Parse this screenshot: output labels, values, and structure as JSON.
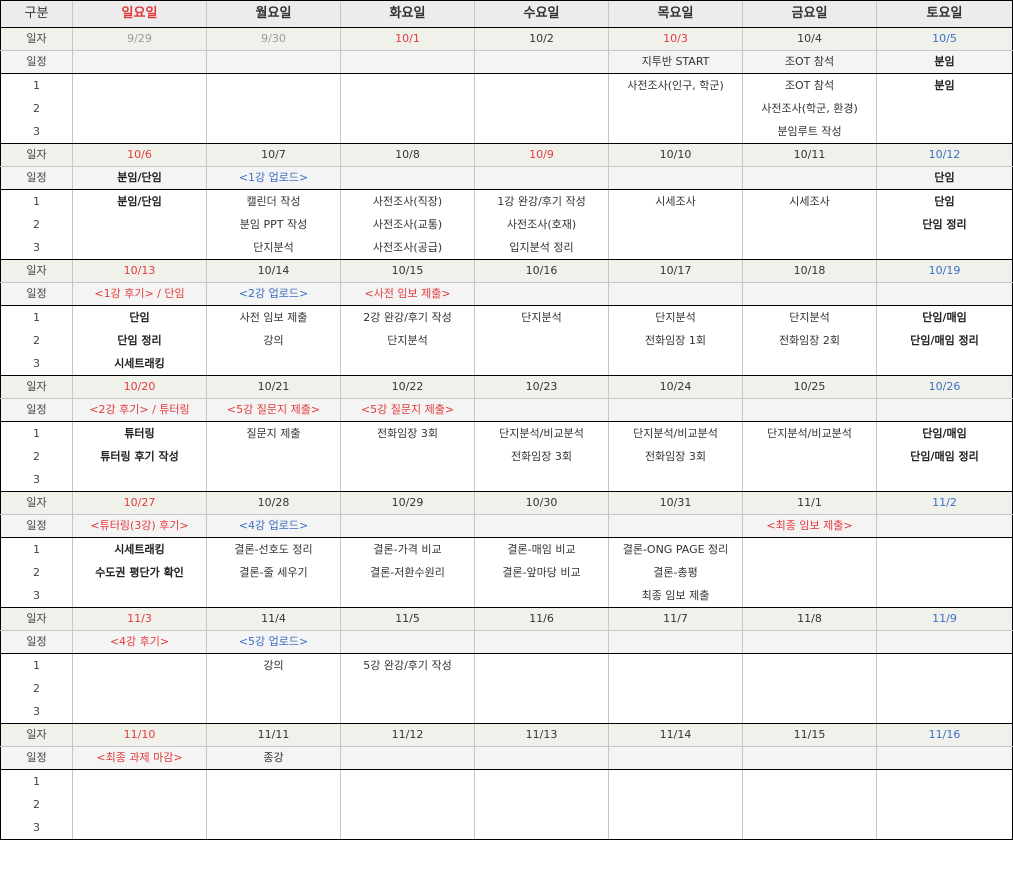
{
  "header": [
    "구분",
    "일요일",
    "월요일",
    "화요일",
    "수요일",
    "목요일",
    "금요일",
    "토요일"
  ],
  "header_colors": [
    "#333333",
    "#e23b3b",
    "#333333",
    "#333333",
    "#333333",
    "#333333",
    "#333333",
    "#333333"
  ],
  "labels": {
    "date": "일자",
    "schedule": "일정",
    "tasks": [
      "1",
      "2",
      "3"
    ]
  },
  "weeks": [
    {
      "dates": [
        {
          "t": "9/29",
          "c": "gray"
        },
        {
          "t": "9/30",
          "c": "gray"
        },
        {
          "t": "10/1",
          "c": "red"
        },
        {
          "t": "10/2",
          "c": ""
        },
        {
          "t": "10/3",
          "c": "red"
        },
        {
          "t": "10/4",
          "c": ""
        },
        {
          "t": "10/5",
          "c": "blue"
        }
      ],
      "schedule": [
        {
          "t": "",
          "c": ""
        },
        {
          "t": "",
          "c": ""
        },
        {
          "t": "",
          "c": ""
        },
        {
          "t": "",
          "c": ""
        },
        {
          "t": "지투반 START",
          "c": ""
        },
        {
          "t": "조OT 참석",
          "c": ""
        },
        {
          "t": "분임",
          "c": "bold"
        }
      ],
      "tasks": [
        [
          {
            "t": "",
            "c": ""
          },
          {
            "t": "",
            "c": ""
          },
          {
            "t": "",
            "c": ""
          },
          {
            "t": "",
            "c": ""
          },
          {
            "t": "사전조사(인구, 학군)",
            "c": ""
          },
          {
            "t": "조OT 참석",
            "c": ""
          },
          {
            "t": "분임",
            "c": "bold"
          }
        ],
        [
          {
            "t": "",
            "c": ""
          },
          {
            "t": "",
            "c": ""
          },
          {
            "t": "",
            "c": ""
          },
          {
            "t": "",
            "c": ""
          },
          {
            "t": "",
            "c": ""
          },
          {
            "t": "사전조사(학군, 환경)",
            "c": ""
          },
          {
            "t": "",
            "c": ""
          }
        ],
        [
          {
            "t": "",
            "c": ""
          },
          {
            "t": "",
            "c": ""
          },
          {
            "t": "",
            "c": ""
          },
          {
            "t": "",
            "c": ""
          },
          {
            "t": "",
            "c": ""
          },
          {
            "t": "분임루트 작성",
            "c": ""
          },
          {
            "t": "",
            "c": ""
          }
        ]
      ]
    },
    {
      "dates": [
        {
          "t": "10/6",
          "c": "red"
        },
        {
          "t": "10/7",
          "c": ""
        },
        {
          "t": "10/8",
          "c": ""
        },
        {
          "t": "10/9",
          "c": "red"
        },
        {
          "t": "10/10",
          "c": ""
        },
        {
          "t": "10/11",
          "c": ""
        },
        {
          "t": "10/12",
          "c": "blue"
        }
      ],
      "schedule": [
        {
          "t": "분임/단임",
          "c": "bold"
        },
        {
          "t": "<1강 업로드>",
          "c": "blue"
        },
        {
          "t": "",
          "c": ""
        },
        {
          "t": "",
          "c": ""
        },
        {
          "t": "",
          "c": ""
        },
        {
          "t": "",
          "c": ""
        },
        {
          "t": "단임",
          "c": "bold"
        }
      ],
      "tasks": [
        [
          {
            "t": "분임/단임",
            "c": "bold"
          },
          {
            "t": "캘린더 작성",
            "c": ""
          },
          {
            "t": "사전조사(직장)",
            "c": ""
          },
          {
            "t": "1강 완강/후기 작성",
            "c": ""
          },
          {
            "t": "시세조사",
            "c": ""
          },
          {
            "t": "시세조사",
            "c": ""
          },
          {
            "t": "단임",
            "c": "bold"
          }
        ],
        [
          {
            "t": "",
            "c": ""
          },
          {
            "t": "분임 PPT 작성",
            "c": ""
          },
          {
            "t": "사전조사(교통)",
            "c": ""
          },
          {
            "t": "사전조사(호재)",
            "c": ""
          },
          {
            "t": "",
            "c": ""
          },
          {
            "t": "",
            "c": ""
          },
          {
            "t": "단임 정리",
            "c": "bold"
          }
        ],
        [
          {
            "t": "",
            "c": ""
          },
          {
            "t": "단지분석",
            "c": ""
          },
          {
            "t": "사전조사(공급)",
            "c": ""
          },
          {
            "t": "입지분석 정리",
            "c": ""
          },
          {
            "t": "",
            "c": ""
          },
          {
            "t": "",
            "c": ""
          },
          {
            "t": "",
            "c": ""
          }
        ]
      ]
    },
    {
      "dates": [
        {
          "t": "10/13",
          "c": "red"
        },
        {
          "t": "10/14",
          "c": ""
        },
        {
          "t": "10/15",
          "c": ""
        },
        {
          "t": "10/16",
          "c": ""
        },
        {
          "t": "10/17",
          "c": ""
        },
        {
          "t": "10/18",
          "c": ""
        },
        {
          "t": "10/19",
          "c": "blue"
        }
      ],
      "schedule": [
        {
          "t": "<1강 후기> / 단임",
          "c": "red"
        },
        {
          "t": "<2강 업로드>",
          "c": "blue"
        },
        {
          "t": "<사전 임보 제출>",
          "c": "red"
        },
        {
          "t": "",
          "c": ""
        },
        {
          "t": "",
          "c": ""
        },
        {
          "t": "",
          "c": ""
        },
        {
          "t": "",
          "c": ""
        }
      ],
      "tasks": [
        [
          {
            "t": "단임",
            "c": "bold"
          },
          {
            "t": "사전 임보 제출",
            "c": ""
          },
          {
            "t": "2강 완강/후기 작성",
            "c": ""
          },
          {
            "t": "단지분석",
            "c": ""
          },
          {
            "t": "단지분석",
            "c": ""
          },
          {
            "t": "단지분석",
            "c": ""
          },
          {
            "t": "단임/매임",
            "c": "bold"
          }
        ],
        [
          {
            "t": "단임 정리",
            "c": "bold"
          },
          {
            "t": "강의",
            "c": ""
          },
          {
            "t": "단지분석",
            "c": ""
          },
          {
            "t": "",
            "c": ""
          },
          {
            "t": "전화임장 1회",
            "c": ""
          },
          {
            "t": "전화임장 2회",
            "c": ""
          },
          {
            "t": "단임/매임 정리",
            "c": "bold"
          }
        ],
        [
          {
            "t": "시세트래킹",
            "c": "bold"
          },
          {
            "t": "",
            "c": ""
          },
          {
            "t": "",
            "c": ""
          },
          {
            "t": "",
            "c": ""
          },
          {
            "t": "",
            "c": ""
          },
          {
            "t": "",
            "c": ""
          },
          {
            "t": "",
            "c": ""
          }
        ]
      ]
    },
    {
      "dates": [
        {
          "t": "10/20",
          "c": "red"
        },
        {
          "t": "10/21",
          "c": ""
        },
        {
          "t": "10/22",
          "c": ""
        },
        {
          "t": "10/23",
          "c": ""
        },
        {
          "t": "10/24",
          "c": ""
        },
        {
          "t": "10/25",
          "c": ""
        },
        {
          "t": "10/26",
          "c": "blue"
        }
      ],
      "schedule": [
        {
          "t": "<2강 후기> / 튜터링",
          "c": "red"
        },
        {
          "t": "<5강 질문지 제출>",
          "c": "red"
        },
        {
          "t": "<5강 질문지 제출>",
          "c": "red"
        },
        {
          "t": "",
          "c": ""
        },
        {
          "t": "",
          "c": ""
        },
        {
          "t": "",
          "c": ""
        },
        {
          "t": "",
          "c": ""
        }
      ],
      "tasks": [
        [
          {
            "t": "튜터링",
            "c": "bold"
          },
          {
            "t": "질문지 제출",
            "c": ""
          },
          {
            "t": "전화임장 3회",
            "c": ""
          },
          {
            "t": "단지분석/비교분석",
            "c": ""
          },
          {
            "t": "단지분석/비교분석",
            "c": ""
          },
          {
            "t": "단지분석/비교분석",
            "c": ""
          },
          {
            "t": "단임/매임",
            "c": "bold"
          }
        ],
        [
          {
            "t": "튜터링 후기 작성",
            "c": "bold"
          },
          {
            "t": "",
            "c": ""
          },
          {
            "t": "",
            "c": ""
          },
          {
            "t": "전화임장 3회",
            "c": ""
          },
          {
            "t": "전화임장 3회",
            "c": ""
          },
          {
            "t": "",
            "c": ""
          },
          {
            "t": "단임/매임 정리",
            "c": "bold"
          }
        ],
        [
          {
            "t": "",
            "c": ""
          },
          {
            "t": "",
            "c": ""
          },
          {
            "t": "",
            "c": ""
          },
          {
            "t": "",
            "c": ""
          },
          {
            "t": "",
            "c": ""
          },
          {
            "t": "",
            "c": ""
          },
          {
            "t": "",
            "c": ""
          }
        ]
      ]
    },
    {
      "dates": [
        {
          "t": "10/27",
          "c": "red"
        },
        {
          "t": "10/28",
          "c": ""
        },
        {
          "t": "10/29",
          "c": ""
        },
        {
          "t": "10/30",
          "c": ""
        },
        {
          "t": "10/31",
          "c": ""
        },
        {
          "t": "11/1",
          "c": ""
        },
        {
          "t": "11/2",
          "c": "blue"
        }
      ],
      "schedule": [
        {
          "t": "<튜터링(3강) 후기>",
          "c": "red"
        },
        {
          "t": "<4강 업로드>",
          "c": "blue"
        },
        {
          "t": "",
          "c": ""
        },
        {
          "t": "",
          "c": ""
        },
        {
          "t": "",
          "c": ""
        },
        {
          "t": "<최종 임보 제출>",
          "c": "red"
        },
        {
          "t": "",
          "c": ""
        }
      ],
      "tasks": [
        [
          {
            "t": "시세트래킹",
            "c": "bold"
          },
          {
            "t": "결론-선호도 정리",
            "c": ""
          },
          {
            "t": "결론-가격 비교",
            "c": ""
          },
          {
            "t": "결론-매임 비교",
            "c": ""
          },
          {
            "t": "결론-ONG PAGE 정리",
            "c": ""
          },
          {
            "t": "",
            "c": ""
          },
          {
            "t": "",
            "c": ""
          }
        ],
        [
          {
            "t": "수도권 평단가 확인",
            "c": "bold"
          },
          {
            "t": "결론-줄 세우기",
            "c": ""
          },
          {
            "t": "결론-저환수원리",
            "c": ""
          },
          {
            "t": "결론-앞마당 비교",
            "c": ""
          },
          {
            "t": "결론-총평",
            "c": ""
          },
          {
            "t": "",
            "c": ""
          },
          {
            "t": "",
            "c": ""
          }
        ],
        [
          {
            "t": "",
            "c": ""
          },
          {
            "t": "",
            "c": ""
          },
          {
            "t": "",
            "c": ""
          },
          {
            "t": "",
            "c": ""
          },
          {
            "t": "최종 임보 제출",
            "c": ""
          },
          {
            "t": "",
            "c": ""
          },
          {
            "t": "",
            "c": ""
          }
        ]
      ]
    },
    {
      "dates": [
        {
          "t": "11/3",
          "c": "red"
        },
        {
          "t": "11/4",
          "c": ""
        },
        {
          "t": "11/5",
          "c": ""
        },
        {
          "t": "11/6",
          "c": ""
        },
        {
          "t": "11/7",
          "c": ""
        },
        {
          "t": "11/8",
          "c": ""
        },
        {
          "t": "11/9",
          "c": "blue"
        }
      ],
      "schedule": [
        {
          "t": "<4강 후기>",
          "c": "red"
        },
        {
          "t": "<5강 업로드>",
          "c": "blue"
        },
        {
          "t": "",
          "c": ""
        },
        {
          "t": "",
          "c": ""
        },
        {
          "t": "",
          "c": ""
        },
        {
          "t": "",
          "c": ""
        },
        {
          "t": "",
          "c": ""
        }
      ],
      "tasks": [
        [
          {
            "t": "",
            "c": ""
          },
          {
            "t": "강의",
            "c": ""
          },
          {
            "t": "5강 완강/후기 작성",
            "c": ""
          },
          {
            "t": "",
            "c": ""
          },
          {
            "t": "",
            "c": ""
          },
          {
            "t": "",
            "c": ""
          },
          {
            "t": "",
            "c": ""
          }
        ],
        [
          {
            "t": "",
            "c": ""
          },
          {
            "t": "",
            "c": ""
          },
          {
            "t": "",
            "c": ""
          },
          {
            "t": "",
            "c": ""
          },
          {
            "t": "",
            "c": ""
          },
          {
            "t": "",
            "c": ""
          },
          {
            "t": "",
            "c": ""
          }
        ],
        [
          {
            "t": "",
            "c": ""
          },
          {
            "t": "",
            "c": ""
          },
          {
            "t": "",
            "c": ""
          },
          {
            "t": "",
            "c": ""
          },
          {
            "t": "",
            "c": ""
          },
          {
            "t": "",
            "c": ""
          },
          {
            "t": "",
            "c": ""
          }
        ]
      ]
    },
    {
      "dates": [
        {
          "t": "11/10",
          "c": "red"
        },
        {
          "t": "11/11",
          "c": ""
        },
        {
          "t": "11/12",
          "c": ""
        },
        {
          "t": "11/13",
          "c": ""
        },
        {
          "t": "11/14",
          "c": ""
        },
        {
          "t": "11/15",
          "c": ""
        },
        {
          "t": "11/16",
          "c": "blue"
        }
      ],
      "schedule": [
        {
          "t": "<최종 과제 마감>",
          "c": "red"
        },
        {
          "t": "종강",
          "c": ""
        },
        {
          "t": "",
          "c": ""
        },
        {
          "t": "",
          "c": ""
        },
        {
          "t": "",
          "c": ""
        },
        {
          "t": "",
          "c": ""
        },
        {
          "t": "",
          "c": ""
        }
      ],
      "tasks": [
        [
          {
            "t": "",
            "c": ""
          },
          {
            "t": "",
            "c": ""
          },
          {
            "t": "",
            "c": ""
          },
          {
            "t": "",
            "c": ""
          },
          {
            "t": "",
            "c": ""
          },
          {
            "t": "",
            "c": ""
          },
          {
            "t": "",
            "c": ""
          }
        ],
        [
          {
            "t": "",
            "c": ""
          },
          {
            "t": "",
            "c": ""
          },
          {
            "t": "",
            "c": ""
          },
          {
            "t": "",
            "c": ""
          },
          {
            "t": "",
            "c": ""
          },
          {
            "t": "",
            "c": ""
          },
          {
            "t": "",
            "c": ""
          }
        ],
        [
          {
            "t": "",
            "c": ""
          },
          {
            "t": "",
            "c": ""
          },
          {
            "t": "",
            "c": ""
          },
          {
            "t": "",
            "c": ""
          },
          {
            "t": "",
            "c": ""
          },
          {
            "t": "",
            "c": ""
          },
          {
            "t": "",
            "c": ""
          }
        ]
      ]
    }
  ]
}
